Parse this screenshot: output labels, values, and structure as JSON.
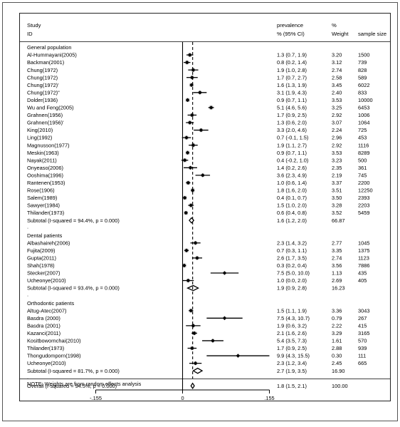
{
  "chart_data": {
    "type": "forest",
    "headers": {
      "study": "Study",
      "id": "ID",
      "effect": "prevalence",
      "effect_ci": "% (95% CI)",
      "weight_pct": "%",
      "weight": "Weight",
      "sample": "sample size"
    },
    "x_ticks": [
      "-.155",
      "0",
      ".155"
    ],
    "x_tick_values": [
      -0.155,
      0,
      0.155
    ],
    "overall_reference": 0.018,
    "groups": [
      {
        "label": "General population",
        "studies": [
          {
            "id": "Al-Hummayani(2005)",
            "est": 1.3,
            "lo": 0.7,
            "hi": 1.9,
            "text": "1.3 (0.7, 1.9)",
            "weight": "3.20",
            "w": 3.2,
            "n": "1500"
          },
          {
            "id": "Backman(2001)",
            "est": 0.8,
            "lo": 0.2,
            "hi": 1.4,
            "text": "0.8 (0.2, 1.4)",
            "weight": "3.12",
            "w": 3.12,
            "n": "739"
          },
          {
            "id": "Chung(1972)",
            "est": 1.9,
            "lo": 1.0,
            "hi": 2.8,
            "text": "1.9 (1.0, 2.8)",
            "weight": "2.74",
            "w": 2.74,
            "n": "828"
          },
          {
            "id": "Chung(1972)",
            "est": 1.7,
            "lo": 0.7,
            "hi": 2.7,
            "text": "1.7 (0.7, 2.7)",
            "weight": "2.58",
            "w": 2.58,
            "n": "589"
          },
          {
            "id": "Chung(1972)'",
            "est": 1.6,
            "lo": 1.3,
            "hi": 1.9,
            "text": "1.6 (1.3, 1.9)",
            "weight": "3.45",
            "w": 3.45,
            "n": "6022"
          },
          {
            "id": "Chung(1972)\"",
            "est": 3.1,
            "lo": 1.9,
            "hi": 4.3,
            "text": "3.1 (1.9, 4.3)",
            "weight": "2.40",
            "w": 2.4,
            "n": "833"
          },
          {
            "id": "Dolder(1936)",
            "est": 0.9,
            "lo": 0.7,
            "hi": 1.1,
            "text": "0.9 (0.7, 1.1)",
            "weight": "3.53",
            "w": 3.53,
            "n": "10000"
          },
          {
            "id": "Wu and Feng(2005)",
            "est": 5.1,
            "lo": 4.6,
            "hi": 5.6,
            "text": "5.1 (4.6, 5.6)",
            "weight": "3.25",
            "w": 3.25,
            "n": "6453"
          },
          {
            "id": "Grahnen(1956)",
            "est": 1.7,
            "lo": 0.9,
            "hi": 2.5,
            "text": "1.7 (0.9, 2.5)",
            "weight": "2.92",
            "w": 2.92,
            "n": "1006"
          },
          {
            "id": "Grahnen(1956)'",
            "est": 1.3,
            "lo": 0.6,
            "hi": 2.0,
            "text": "1.3 (0.6, 2.0)",
            "weight": "3.07",
            "w": 3.07,
            "n": "1064"
          },
          {
            "id": "King(2010)",
            "est": 3.3,
            "lo": 2.0,
            "hi": 4.6,
            "text": "3.3 (2.0, 4.6)",
            "weight": "2.24",
            "w": 2.24,
            "n": "725"
          },
          {
            "id": "Ling(1992)",
            "est": 0.7,
            "lo": -0.1,
            "hi": 1.5,
            "text": "0.7 (-0.1, 1.5)",
            "weight": "2.96",
            "w": 2.96,
            "n": "453"
          },
          {
            "id": "Magnusson(1977)",
            "est": 1.9,
            "lo": 1.1,
            "hi": 2.7,
            "text": "1.9 (1.1, 2.7)",
            "weight": "2.92",
            "w": 2.92,
            "n": "1116"
          },
          {
            "id": "Meskin(1963)",
            "est": 0.9,
            "lo": 0.7,
            "hi": 1.1,
            "text": "0.9 (0.7, 1.1)",
            "weight": "3.53",
            "w": 3.53,
            "n": "8289"
          },
          {
            "id": "Nayak(2011)",
            "est": 0.4,
            "lo": -0.2,
            "hi": 1.0,
            "text": "0.4 (-0.2, 1.0)",
            "weight": "3.23",
            "w": 3.23,
            "n": "500"
          },
          {
            "id": "Onyeaso(2006)",
            "est": 1.4,
            "lo": 0.2,
            "hi": 2.6,
            "text": "1.4 (0.2, 2.6)",
            "weight": "2.35",
            "w": 2.35,
            "n": "361"
          },
          {
            "id": "Ooshima(1996)",
            "est": 3.6,
            "lo": 2.3,
            "hi": 4.9,
            "text": "3.6 (2.3, 4.9)",
            "weight": "2.19",
            "w": 2.19,
            "n": "745"
          },
          {
            "id": "Rantenen(1953)",
            "est": 1.0,
            "lo": 0.6,
            "hi": 1.4,
            "text": "1.0 (0.6, 1.4)",
            "weight": "3.37",
            "w": 3.37,
            "n": "2200"
          },
          {
            "id": "Rose(1906)",
            "est": 1.8,
            "lo": 1.6,
            "hi": 2.0,
            "text": "1.8 (1.6, 2.0)",
            "weight": "3.51",
            "w": 3.51,
            "n": "12250"
          },
          {
            "id": "Salem(1989)",
            "est": 0.4,
            "lo": 0.1,
            "hi": 0.7,
            "text": "0.4 (0.1, 0.7)",
            "weight": "3.50",
            "w": 3.5,
            "n": "2393"
          },
          {
            "id": "Sawyer(1984)",
            "est": 1.5,
            "lo": 1.0,
            "hi": 2.0,
            "text": "1.5 (1.0, 2.0)",
            "weight": "3.28",
            "w": 3.28,
            "n": "2203"
          },
          {
            "id": "Thilander(1973)",
            "est": 0.6,
            "lo": 0.4,
            "hi": 0.8,
            "text": "0.6 (0.4, 0.8)",
            "weight": "3.52",
            "w": 3.52,
            "n": "5459"
          }
        ],
        "subtotal": {
          "label": "Subtotal  (I-squared = 94.4%, p = 0.000)",
          "est": 1.6,
          "lo": 1.2,
          "hi": 2.0,
          "text": "1.6 (1.2, 2.0)",
          "weight": "66.87"
        }
      },
      {
        "label": "Dental patients",
        "studies": [
          {
            "id": "Albashaireh(2006)",
            "est": 2.3,
            "lo": 1.4,
            "hi": 3.2,
            "text": "2.3 (1.4, 3.2)",
            "weight": "2.77",
            "w": 2.77,
            "n": "1045"
          },
          {
            "id": "Fujita(2009)",
            "est": 0.7,
            "lo": 0.3,
            "hi": 1.1,
            "text": "0.7 (0.3, 1.1)",
            "weight": "3.35",
            "w": 3.35,
            "n": "1375"
          },
          {
            "id": "Gupta(2011)",
            "est": 2.6,
            "lo": 1.7,
            "hi": 3.5,
            "text": "2.6 (1.7, 3.5)",
            "weight": "2.74",
            "w": 2.74,
            "n": "1123"
          },
          {
            "id": "Shah(1978)",
            "est": 0.3,
            "lo": 0.2,
            "hi": 0.4,
            "text": "0.3 (0.2, 0.4)",
            "weight": "3.56",
            "w": 3.56,
            "n": "7886"
          },
          {
            "id": "Stecker(2007)",
            "est": 7.5,
            "lo": 5.0,
            "hi": 10.0,
            "text": "7.5 (5.0, 10.0)",
            "weight": "1.13",
            "w": 1.13,
            "n": "435"
          },
          {
            "id": "Ucheonye(2010)",
            "est": 1.0,
            "lo": 0.0,
            "hi": 2.0,
            "text": "1.0 (0.0, 2.0)",
            "weight": "2.69",
            "w": 2.69,
            "n": "405"
          }
        ],
        "subtotal": {
          "label": "Subtotal  (I-squared = 93.4%, p = 0.000)",
          "est": 1.9,
          "lo": 0.9,
          "hi": 2.8,
          "text": "1.9 (0.9, 2.8)",
          "weight": "16.23"
        }
      },
      {
        "label": "Orthodontic patients",
        "studies": [
          {
            "id": "Altug-Atec(2007)",
            "est": 1.5,
            "lo": 1.1,
            "hi": 1.9,
            "text": "1.5 (1.1, 1.9)",
            "weight": "3.36",
            "w": 3.36,
            "n": "3043"
          },
          {
            "id": "Basdra (2000)",
            "est": 7.5,
            "lo": 4.3,
            "hi": 10.7,
            "text": "7.5 (4.3, 10.7)",
            "weight": "0.79",
            "w": 0.79,
            "n": "267"
          },
          {
            "id": "Basdra (2001)",
            "est": 1.9,
            "lo": 0.6,
            "hi": 3.2,
            "text": "1.9 (0.6, 3.2)",
            "weight": "2.22",
            "w": 2.22,
            "n": "415"
          },
          {
            "id": "Kazanci(2011)",
            "est": 2.1,
            "lo": 1.6,
            "hi": 2.6,
            "text": "2.1 (1.6, 2.6)",
            "weight": "3.29",
            "w": 3.29,
            "n": "3165"
          },
          {
            "id": "Kositbowornchai(2010)",
            "est": 5.4,
            "lo": 3.5,
            "hi": 7.3,
            "text": "5.4 (3.5, 7.3)",
            "weight": "1.61",
            "w": 1.61,
            "n": "570"
          },
          {
            "id": "Thilander(1973)",
            "est": 1.7,
            "lo": 0.9,
            "hi": 2.5,
            "text": "1.7 (0.9, 2.5)",
            "weight": "2.88",
            "w": 2.88,
            "n": "939"
          },
          {
            "id": "Thongudomporn(1998)",
            "est": 9.9,
            "lo": 4.3,
            "hi": 15.5,
            "text": "9.9 (4.3, 15.5)",
            "weight": "0.30",
            "w": 0.3,
            "n": "111"
          },
          {
            "id": "Ucheonye(2010)",
            "est": 2.3,
            "lo": 1.2,
            "hi": 3.4,
            "text": "2.3 (1.2, 3.4)",
            "weight": "2.45",
            "w": 2.45,
            "n": "665"
          }
        ],
        "subtotal": {
          "label": "Subtotal  (I-squared = 81.7%, p = 0.000)",
          "est": 2.7,
          "lo": 1.9,
          "hi": 3.5,
          "text": "2.7 (1.9, 3.5)",
          "weight": "16.90"
        }
      }
    ],
    "overall": {
      "label": "Overall  (I-squared = 94.5%, p = 0.000)",
      "est": 1.8,
      "lo": 1.5,
      "hi": 2.1,
      "text": "1.8 (1.5, 2.1)",
      "weight": "100.00"
    },
    "note": "NOTE: Weights are from random effects analysis"
  }
}
